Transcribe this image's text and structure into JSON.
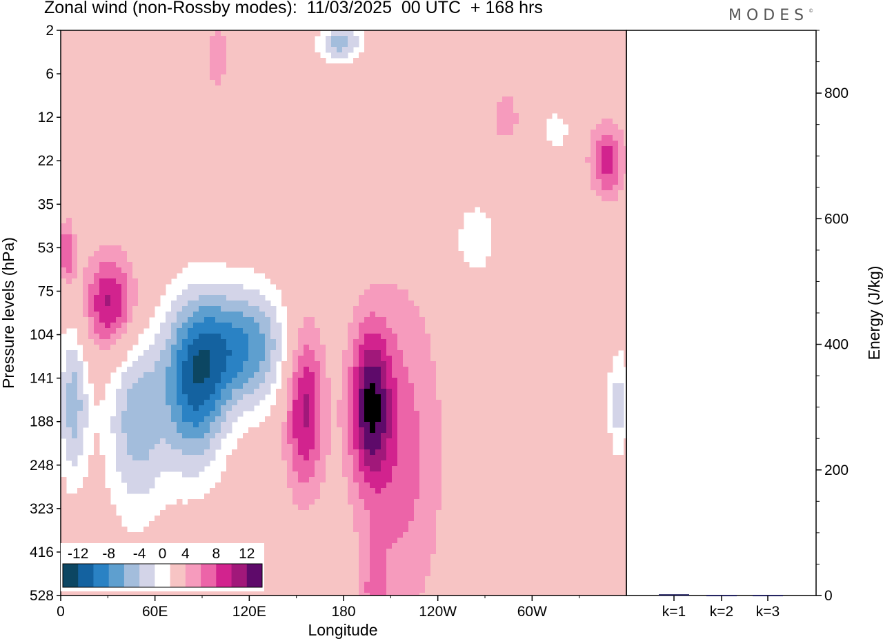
{
  "header": {
    "title": "Zonal wind (non-Rossby modes):  11/03/2025  00 UTC  + 168 hrs",
    "brand": "MODES",
    "brand_mark": "©"
  },
  "chart_data": [
    {
      "type": "heatmap",
      "title": "Zonal wind (non-Rossby modes):  11/03/2025  00 UTC  + 168 hrs",
      "xlabel": "Longitude",
      "ylabel": "Pressure levels (hPa)",
      "x_ticks": [
        "0",
        "60E",
        "120E",
        "180",
        "120W",
        "60W"
      ],
      "x_tick_values": [
        0,
        60,
        120,
        180,
        240,
        300
      ],
      "xlim": [
        0,
        360
      ],
      "y_ticks": [
        "2",
        "6",
        "12",
        "22",
        "35",
        "53",
        "75",
        "104",
        "141",
        "188",
        "248",
        "323",
        "416",
        "528"
      ],
      "y_scale": "categorical-levels",
      "colorbar": {
        "labels": [
          "-12",
          "-8",
          "-4",
          "0",
          "4",
          "8",
          "12"
        ],
        "levels": [
          -14,
          -12,
          -10,
          -8,
          -6,
          -4,
          -2,
          2,
          4,
          6,
          8,
          10,
          12,
          14
        ],
        "colors": [
          "#0c4662",
          "#1462a0",
          "#2a82c4",
          "#5e9fcf",
          "#a3bddc",
          "#d3d4e8",
          "#ffffff",
          "#f7c4c4",
          "#f69bbd",
          "#ec64a8",
          "#d2238e",
          "#a1187a",
          "#5e0a6a"
        ]
      },
      "features": [
        {
          "kind": "negative",
          "lon": 48,
          "level": 9.0,
          "amp": -7,
          "sx": 14,
          "sy": 1.6
        },
        {
          "kind": "negative",
          "lon": 85,
          "level": 8.2,
          "amp": -11,
          "sx": 14,
          "sy": 1.4
        },
        {
          "kind": "negative",
          "lon": 115,
          "level": 7.3,
          "amp": -10,
          "sx": 22,
          "sy": 1.0
        },
        {
          "kind": "negative",
          "lon": 8,
          "level": 8.6,
          "amp": -7,
          "sx": 7,
          "sy": 1.3
        },
        {
          "kind": "negative",
          "lon": 178,
          "level": 0.3,
          "amp": -7,
          "sx": 10,
          "sy": 0.3
        },
        {
          "kind": "negative",
          "lon": 264,
          "level": 4.8,
          "amp": -4,
          "sx": 9,
          "sy": 0.6
        },
        {
          "kind": "negative",
          "lon": 355,
          "level": 8.6,
          "amp": -5,
          "sx": 5,
          "sy": 0.9
        },
        {
          "kind": "negative",
          "lon": 315,
          "level": 2.3,
          "amp": -4,
          "sx": 6,
          "sy": 0.3
        },
        {
          "kind": "positive",
          "lon": 32,
          "level": 6.3,
          "amp": 9,
          "sx": 12,
          "sy": 0.8
        },
        {
          "kind": "positive",
          "lon": 155,
          "level": 8.6,
          "amp": 9,
          "sx": 9,
          "sy": 1.4
        },
        {
          "kind": "positive",
          "lon": 197,
          "level": 8.6,
          "amp": 10,
          "sx": 9,
          "sy": 1.2
        },
        {
          "kind": "positive",
          "lon": 215,
          "level": 9.8,
          "amp": 5,
          "sx": 20,
          "sy": 2.8
        },
        {
          "kind": "positive",
          "lon": 4,
          "level": 5.1,
          "amp": 6,
          "sx": 4,
          "sy": 0.5
        },
        {
          "kind": "positive",
          "lon": 348,
          "level": 3.0,
          "amp": 7,
          "sx": 8,
          "sy": 0.6
        },
        {
          "kind": "positive",
          "lon": 100,
          "level": 0.6,
          "amp": 4,
          "sx": 4,
          "sy": 0.6
        },
        {
          "kind": "positive",
          "lon": 283,
          "level": 2.0,
          "amp": 4,
          "sx": 6,
          "sy": 0.4
        },
        {
          "kind": "positive",
          "lon": 200,
          "level": 13.0,
          "amp": 4,
          "sx": 5,
          "sy": 0.8
        }
      ]
    },
    {
      "type": "bar",
      "categories": [
        "k=1",
        "k=2",
        "k=3"
      ],
      "values": [
        2,
        1,
        1
      ],
      "ylabel": "Energy (J/kg)",
      "ylim": [
        0,
        900
      ],
      "y_ticks": [
        "0",
        "200",
        "400",
        "600",
        "800"
      ],
      "y_tick_values": [
        0,
        200,
        400,
        600,
        800
      ],
      "bar_color": "#1f1f5e"
    }
  ]
}
